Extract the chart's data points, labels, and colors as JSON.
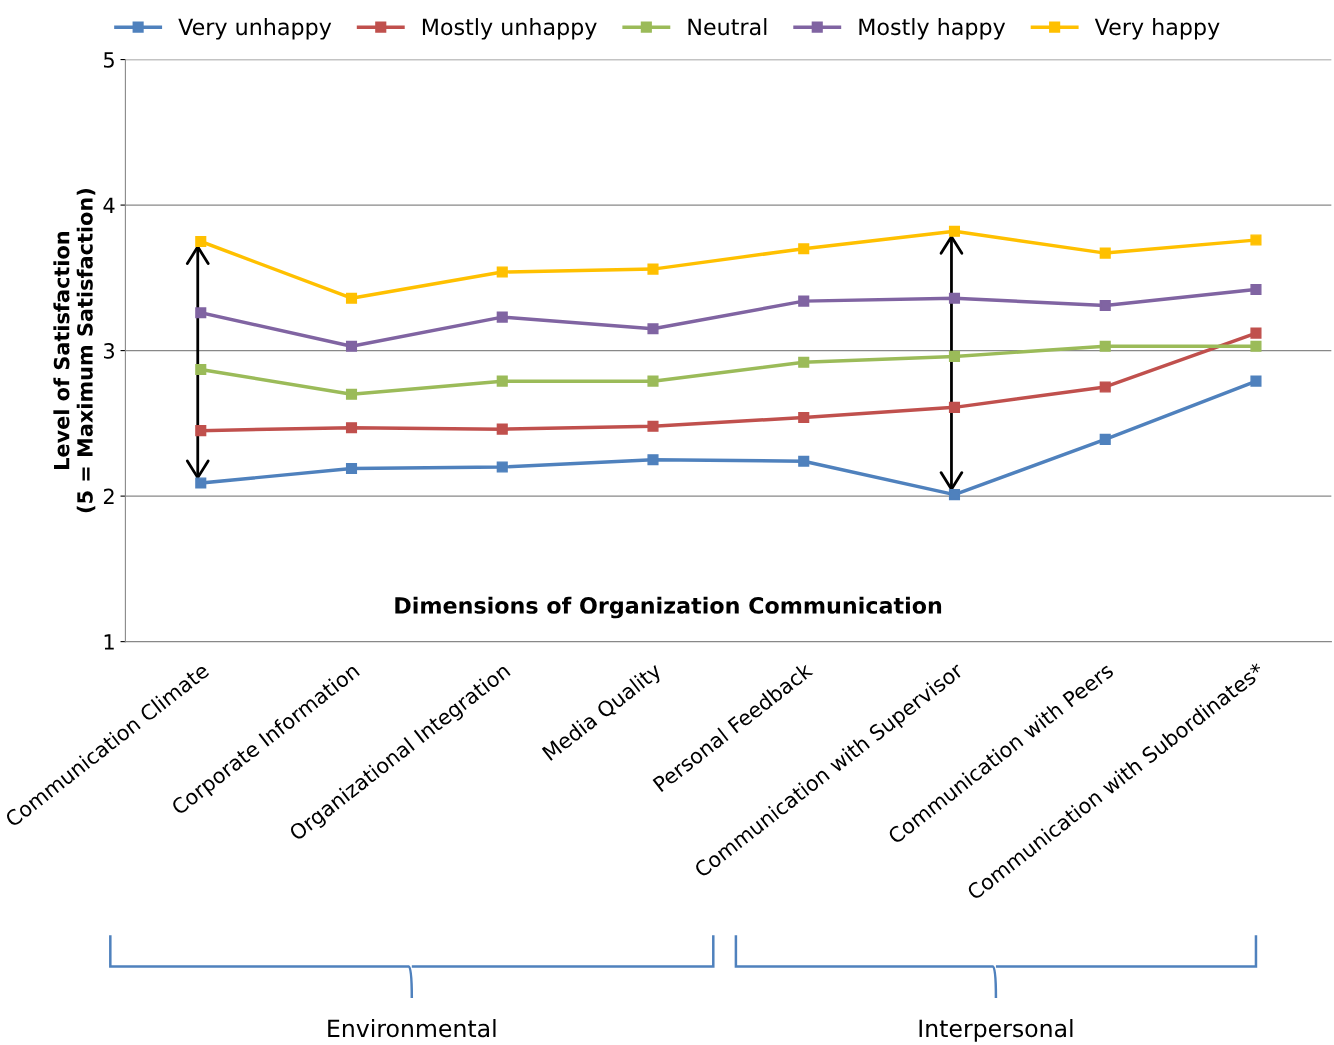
{
  "chart_data": {
    "type": "line",
    "xlabel": "Dimensions of Organization Communication",
    "ylabel": "Level of Satisfaction\n(5 = Maximum Satisfaction)",
    "categories": [
      "Communication Climate",
      "Corporate Information",
      "Organizational Integration",
      "Media Quality",
      "Personal Feedback",
      "Communication with Supervisor",
      "Communication with Peers",
      "Communication with Subordinates*"
    ],
    "series": [
      {
        "name": "Very unhappy",
        "color": "#4f81bd",
        "values": [
          2.09,
          2.19,
          2.2,
          2.25,
          2.24,
          2.01,
          2.39,
          2.79
        ]
      },
      {
        "name": "Mostly unhappy",
        "color": "#c0504d",
        "values": [
          2.45,
          2.47,
          2.46,
          2.48,
          2.54,
          2.61,
          2.75,
          3.12
        ]
      },
      {
        "name": "Neutral",
        "color": "#9bbb59",
        "values": [
          2.87,
          2.7,
          2.79,
          2.79,
          2.92,
          2.96,
          3.03,
          3.03
        ]
      },
      {
        "name": "Mostly happy",
        "color": "#8064a2",
        "values": [
          3.26,
          3.03,
          3.23,
          3.15,
          3.34,
          3.36,
          3.31,
          3.42
        ]
      },
      {
        "name": "Very happy",
        "color": "#ffc000",
        "values": [
          3.75,
          3.36,
          3.54,
          3.56,
          3.7,
          3.82,
          3.67,
          3.76
        ]
      }
    ],
    "annotations": [
      "Environmental",
      "Interpersonal"
    ],
    "ylim": [
      1,
      5
    ],
    "yticks": [
      1,
      2,
      3,
      4,
      5
    ],
    "grid": "y",
    "legend": "top",
    "marker": "square",
    "line_style": "solid"
  }
}
